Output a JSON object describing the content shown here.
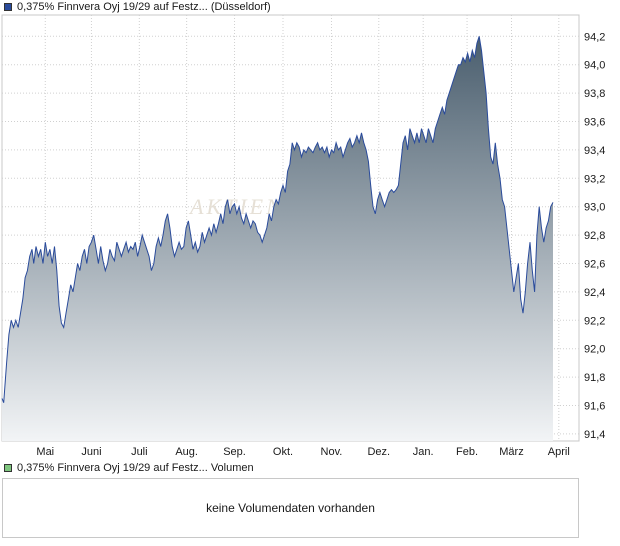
{
  "price_legend": {
    "label": "0,375% Finnvera Oyj 19/29 auf Festz... (Düsseldorf)",
    "color": "#2a4b9b"
  },
  "volume_legend": {
    "label": "0,375% Finnvera Oyj 19/29 auf Festz... Volumen",
    "color": "#7fc67f"
  },
  "volume_box": {
    "message": "keine Volumendaten vorhanden"
  },
  "watermark": "AKTIEN",
  "chart_data": {
    "type": "area",
    "title": "",
    "xlabel": "",
    "ylabel": "",
    "ylim": [
      91.35,
      94.35
    ],
    "yticks": [
      "91,4",
      "91,6",
      "91,8",
      "92,0",
      "92,2",
      "92,4",
      "92,6",
      "92,8",
      "93,0",
      "93,2",
      "93,4",
      "93,6",
      "93,8",
      "94,0",
      "94,2"
    ],
    "ytick_values": [
      91.4,
      91.6,
      91.8,
      92.0,
      92.2,
      92.4,
      92.6,
      92.8,
      93.0,
      93.2,
      93.4,
      93.6,
      93.8,
      94.0,
      94.2
    ],
    "xlim": [
      0,
      100
    ],
    "xticks": [
      "Mai",
      "Juni",
      "Juli",
      "Aug.",
      "Sep.",
      "Okt.",
      "Nov.",
      "Dez.",
      "Jan.",
      "Feb.",
      "März",
      "April"
    ],
    "xtick_positions": [
      7.5,
      15.5,
      23.8,
      32.0,
      40.3,
      48.7,
      57.1,
      65.3,
      73.0,
      80.6,
      88.3,
      96.5
    ],
    "grid": true,
    "line_color": "#2a4b9b",
    "fill_top_color": "#4a5e6e",
    "fill_bottom_color": "#f2f4f6",
    "series": [
      {
        "values": [
          [
            0.0,
            91.65
          ],
          [
            0.3,
            91.62
          ],
          [
            0.8,
            91.9
          ],
          [
            1.2,
            92.1
          ],
          [
            1.6,
            92.2
          ],
          [
            2.0,
            92.15
          ],
          [
            2.4,
            92.2
          ],
          [
            2.8,
            92.15
          ],
          [
            3.2,
            92.25
          ],
          [
            3.6,
            92.35
          ],
          [
            4.0,
            92.5
          ],
          [
            4.4,
            92.55
          ],
          [
            4.8,
            92.65
          ],
          [
            5.2,
            92.7
          ],
          [
            5.5,
            92.6
          ],
          [
            5.9,
            92.72
          ],
          [
            6.3,
            92.65
          ],
          [
            6.7,
            92.7
          ],
          [
            7.1,
            92.6
          ],
          [
            7.5,
            92.75
          ],
          [
            7.9,
            92.65
          ],
          [
            8.3,
            92.7
          ],
          [
            8.7,
            92.6
          ],
          [
            9.1,
            92.72
          ],
          [
            9.5,
            92.55
          ],
          [
            9.9,
            92.3
          ],
          [
            10.3,
            92.18
          ],
          [
            10.7,
            92.15
          ],
          [
            11.1,
            92.25
          ],
          [
            11.5,
            92.35
          ],
          [
            11.9,
            92.45
          ],
          [
            12.3,
            92.4
          ],
          [
            12.7,
            92.5
          ],
          [
            13.1,
            92.6
          ],
          [
            13.5,
            92.55
          ],
          [
            13.9,
            92.65
          ],
          [
            14.3,
            92.7
          ],
          [
            14.7,
            92.6
          ],
          [
            15.1,
            92.72
          ],
          [
            15.5,
            92.75
          ],
          [
            15.9,
            92.8
          ],
          [
            16.3,
            92.7
          ],
          [
            16.7,
            92.6
          ],
          [
            17.1,
            92.72
          ],
          [
            17.5,
            92.62
          ],
          [
            17.9,
            92.55
          ],
          [
            18.3,
            92.6
          ],
          [
            18.7,
            92.7
          ],
          [
            19.1,
            92.65
          ],
          [
            19.5,
            92.62
          ],
          [
            19.9,
            92.75
          ],
          [
            20.3,
            92.7
          ],
          [
            20.7,
            92.65
          ],
          [
            21.1,
            92.7
          ],
          [
            21.5,
            92.75
          ],
          [
            21.9,
            92.68
          ],
          [
            22.3,
            92.72
          ],
          [
            22.7,
            92.7
          ],
          [
            23.1,
            92.75
          ],
          [
            23.5,
            92.65
          ],
          [
            23.9,
            92.72
          ],
          [
            24.3,
            92.8
          ],
          [
            24.7,
            92.75
          ],
          [
            25.1,
            92.7
          ],
          [
            25.5,
            92.65
          ],
          [
            25.9,
            92.55
          ],
          [
            26.3,
            92.6
          ],
          [
            26.7,
            92.72
          ],
          [
            27.1,
            92.78
          ],
          [
            27.5,
            92.72
          ],
          [
            27.9,
            92.8
          ],
          [
            28.3,
            92.9
          ],
          [
            28.7,
            92.95
          ],
          [
            29.1,
            92.85
          ],
          [
            29.5,
            92.72
          ],
          [
            29.9,
            92.65
          ],
          [
            30.3,
            92.7
          ],
          [
            30.7,
            92.75
          ],
          [
            31.1,
            92.7
          ],
          [
            31.5,
            92.72
          ],
          [
            31.9,
            92.85
          ],
          [
            32.3,
            92.9
          ],
          [
            32.7,
            92.8
          ],
          [
            33.1,
            92.7
          ],
          [
            33.5,
            92.75
          ],
          [
            33.9,
            92.68
          ],
          [
            34.3,
            92.72
          ],
          [
            34.7,
            92.82
          ],
          [
            35.1,
            92.75
          ],
          [
            35.5,
            92.8
          ],
          [
            35.9,
            92.85
          ],
          [
            36.3,
            92.8
          ],
          [
            36.7,
            92.88
          ],
          [
            37.1,
            92.82
          ],
          [
            37.5,
            92.88
          ],
          [
            37.9,
            92.95
          ],
          [
            38.3,
            92.88
          ],
          [
            38.7,
            93.0
          ],
          [
            39.1,
            93.05
          ],
          [
            39.5,
            92.95
          ],
          [
            39.9,
            93.0
          ],
          [
            40.3,
            93.02
          ],
          [
            40.7,
            92.95
          ],
          [
            41.1,
            93.0
          ],
          [
            41.5,
            92.92
          ],
          [
            41.9,
            92.88
          ],
          [
            42.3,
            92.95
          ],
          [
            42.7,
            92.9
          ],
          [
            43.1,
            92.85
          ],
          [
            43.5,
            92.9
          ],
          [
            43.9,
            92.88
          ],
          [
            44.3,
            92.82
          ],
          [
            44.7,
            92.8
          ],
          [
            45.1,
            92.75
          ],
          [
            45.5,
            92.8
          ],
          [
            45.9,
            92.85
          ],
          [
            46.3,
            92.95
          ],
          [
            46.7,
            92.9
          ],
          [
            47.1,
            93.0
          ],
          [
            47.5,
            93.05
          ],
          [
            47.9,
            93.02
          ],
          [
            48.3,
            93.1
          ],
          [
            48.7,
            93.15
          ],
          [
            49.1,
            93.1
          ],
          [
            49.5,
            93.25
          ],
          [
            49.9,
            93.3
          ],
          [
            50.3,
            93.45
          ],
          [
            50.7,
            93.4
          ],
          [
            51.1,
            93.45
          ],
          [
            51.5,
            93.42
          ],
          [
            51.9,
            93.35
          ],
          [
            52.3,
            93.4
          ],
          [
            52.7,
            93.38
          ],
          [
            53.1,
            93.42
          ],
          [
            53.5,
            93.4
          ],
          [
            53.9,
            93.38
          ],
          [
            54.3,
            93.42
          ],
          [
            54.7,
            93.45
          ],
          [
            55.1,
            93.4
          ],
          [
            55.5,
            93.42
          ],
          [
            55.9,
            93.38
          ],
          [
            56.3,
            93.42
          ],
          [
            56.7,
            93.35
          ],
          [
            57.1,
            93.4
          ],
          [
            57.5,
            93.38
          ],
          [
            57.9,
            93.45
          ],
          [
            58.3,
            93.4
          ],
          [
            58.7,
            93.42
          ],
          [
            59.1,
            93.35
          ],
          [
            59.5,
            93.4
          ],
          [
            59.9,
            93.45
          ],
          [
            60.3,
            93.48
          ],
          [
            60.7,
            93.42
          ],
          [
            61.1,
            93.45
          ],
          [
            61.5,
            93.5
          ],
          [
            61.9,
            93.45
          ],
          [
            62.3,
            93.52
          ],
          [
            62.7,
            93.45
          ],
          [
            63.1,
            93.4
          ],
          [
            63.5,
            93.32
          ],
          [
            63.9,
            93.15
          ],
          [
            64.3,
            93.0
          ],
          [
            64.7,
            92.95
          ],
          [
            65.1,
            93.05
          ],
          [
            65.5,
            93.1
          ],
          [
            65.9,
            93.05
          ],
          [
            66.3,
            93.0
          ],
          [
            66.7,
            93.05
          ],
          [
            67.1,
            93.1
          ],
          [
            67.5,
            93.12
          ],
          [
            67.9,
            93.1
          ],
          [
            68.3,
            93.12
          ],
          [
            68.7,
            93.15
          ],
          [
            69.1,
            93.3
          ],
          [
            69.5,
            93.45
          ],
          [
            69.9,
            93.5
          ],
          [
            70.3,
            93.4
          ],
          [
            70.7,
            93.55
          ],
          [
            71.1,
            93.5
          ],
          [
            71.5,
            93.45
          ],
          [
            71.9,
            93.52
          ],
          [
            72.3,
            93.45
          ],
          [
            72.7,
            93.55
          ],
          [
            73.1,
            93.5
          ],
          [
            73.5,
            93.45
          ],
          [
            73.9,
            93.55
          ],
          [
            74.3,
            93.5
          ],
          [
            74.7,
            93.45
          ],
          [
            75.1,
            93.55
          ],
          [
            75.5,
            93.6
          ],
          [
            75.9,
            93.65
          ],
          [
            76.3,
            93.7
          ],
          [
            76.7,
            93.65
          ],
          [
            77.1,
            93.75
          ],
          [
            77.5,
            93.8
          ],
          [
            77.9,
            93.85
          ],
          [
            78.3,
            93.9
          ],
          [
            78.7,
            93.95
          ],
          [
            79.1,
            94.0
          ],
          [
            79.5,
            94.0
          ],
          [
            79.9,
            94.05
          ],
          [
            80.3,
            94.02
          ],
          [
            80.7,
            94.08
          ],
          [
            81.1,
            94.02
          ],
          [
            81.5,
            94.1
          ],
          [
            81.9,
            94.05
          ],
          [
            82.3,
            94.15
          ],
          [
            82.7,
            94.2
          ],
          [
            83.1,
            94.1
          ],
          [
            83.5,
            93.95
          ],
          [
            83.9,
            93.8
          ],
          [
            84.3,
            93.55
          ],
          [
            84.7,
            93.35
          ],
          [
            85.1,
            93.3
          ],
          [
            85.5,
            93.45
          ],
          [
            85.9,
            93.3
          ],
          [
            86.3,
            93.2
          ],
          [
            86.7,
            93.05
          ],
          [
            87.1,
            93.0
          ],
          [
            87.5,
            92.85
          ],
          [
            87.9,
            92.7
          ],
          [
            88.3,
            92.55
          ],
          [
            88.7,
            92.4
          ],
          [
            89.1,
            92.5
          ],
          [
            89.5,
            92.6
          ],
          [
            89.9,
            92.35
          ],
          [
            90.3,
            92.25
          ],
          [
            90.7,
            92.4
          ],
          [
            91.1,
            92.6
          ],
          [
            91.5,
            92.75
          ],
          [
            91.9,
            92.55
          ],
          [
            92.3,
            92.4
          ],
          [
            92.7,
            92.8
          ],
          [
            93.1,
            93.0
          ],
          [
            93.5,
            92.85
          ],
          [
            93.9,
            92.75
          ],
          [
            94.3,
            92.85
          ],
          [
            94.7,
            92.9
          ],
          [
            95.1,
            93.0
          ],
          [
            95.5,
            93.03
          ]
        ]
      }
    ]
  }
}
